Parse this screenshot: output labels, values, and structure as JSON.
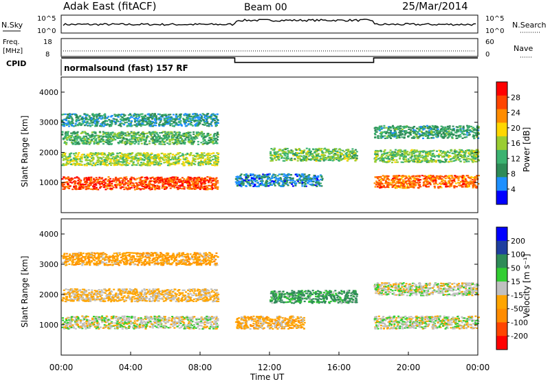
{
  "header": {
    "title": "Adak East (fitACF)",
    "beam": "Beam 00",
    "date": "25/Mar/2014"
  },
  "sky_panel": {
    "left_label": "N.Sky",
    "right_label": "N.Search",
    "left_ticks": [
      "10^5",
      "10^0"
    ],
    "right_ticks": [
      "10^5",
      "10^0"
    ]
  },
  "freq_panel": {
    "left_label_1": "Freq.",
    "left_label_2": "[MHz]",
    "right_label": "Nave",
    "left_ticks": [
      "18",
      "8"
    ],
    "right_ticks": [
      "60",
      "0"
    ],
    "cpid_label": "CPID",
    "cpid_text": "normalsound (fast) 157 RF"
  },
  "power_panel": {
    "ylabel": "Slant Range [km]",
    "yticks": [
      "4000",
      "3000",
      "2000",
      "1000"
    ],
    "colorbar_label": "Power [dB]",
    "colorbar_ticks": [
      "28",
      "24",
      "20",
      "16",
      "12",
      "8",
      "4"
    ],
    "colorbar_colors": [
      "#ff0000",
      "#ff4500",
      "#ff8c00",
      "#ffd700",
      "#9acd32",
      "#3cb371",
      "#2e8b57",
      "#1e90ff",
      "#0000ff"
    ]
  },
  "velocity_panel": {
    "ylabel": "Slant Range [km]",
    "yticks": [
      "4000",
      "3000",
      "2000",
      "1000"
    ],
    "colorbar_label": "Velocity [m s⁻¹]",
    "colorbar_ticks": [
      "200",
      "100",
      "50",
      "15",
      "-15",
      "-50",
      "-100",
      "-200"
    ],
    "colorbar_colors": [
      "#0000ff",
      "#1f3f9f",
      "#2e8b57",
      "#32cd32",
      "#c0c0c0",
      "#ffa500",
      "#ff8c00",
      "#ff4500",
      "#ff0000"
    ]
  },
  "x_axis": {
    "ticks": [
      "00:00",
      "04:00",
      "08:00",
      "12:00",
      "16:00",
      "20:00",
      "00:00"
    ],
    "label": "Time UT"
  },
  "chart_data": {
    "type": "heatmap",
    "x_range_hours": [
      0,
      24
    ],
    "y_range_km": [
      0,
      4500
    ],
    "freq_mhz": [
      {
        "start": 0,
        "end": 10,
        "value": 11
      },
      {
        "start": 10,
        "end": 18,
        "value": 8.5
      },
      {
        "start": 18,
        "end": 24,
        "value": 11
      }
    ],
    "power_bands": [
      {
        "x": [
          0,
          9
        ],
        "y_center": 1000,
        "value_db": 28
      },
      {
        "x": [
          0,
          9
        ],
        "y_center": 1800,
        "value_db": 16
      },
      {
        "x": [
          0,
          9
        ],
        "y_center": 2500,
        "value_db": 12
      },
      {
        "x": [
          0,
          9
        ],
        "y_center": 3100,
        "value_db": 8
      },
      {
        "x": [
          10,
          15
        ],
        "y_center": 1100,
        "value_db": 6
      },
      {
        "x": [
          12,
          17
        ],
        "y_center": 1950,
        "value_db": 14
      },
      {
        "x": [
          18,
          24
        ],
        "y_center": 1050,
        "value_db": 26
      },
      {
        "x": [
          18,
          24
        ],
        "y_center": 1900,
        "value_db": 14
      },
      {
        "x": [
          18,
          24
        ],
        "y_center": 2700,
        "value_db": 10
      }
    ],
    "velocity_bands": [
      {
        "x": [
          0,
          9
        ],
        "y_center": 1100,
        "value_ms": 0
      },
      {
        "x": [
          0,
          9
        ],
        "y_center": 2000,
        "value_ms": -20
      },
      {
        "x": [
          0,
          9
        ],
        "y_center": 3200,
        "value_ms": -40
      },
      {
        "x": [
          12,
          17
        ],
        "y_center": 1950,
        "value_ms": 40
      },
      {
        "x": [
          10,
          14
        ],
        "y_center": 1100,
        "value_ms": -30
      },
      {
        "x": [
          18,
          24
        ],
        "y_center": 1100,
        "value_ms": 0
      },
      {
        "x": [
          18,
          24
        ],
        "y_center": 2200,
        "value_ms": 0
      }
    ]
  }
}
